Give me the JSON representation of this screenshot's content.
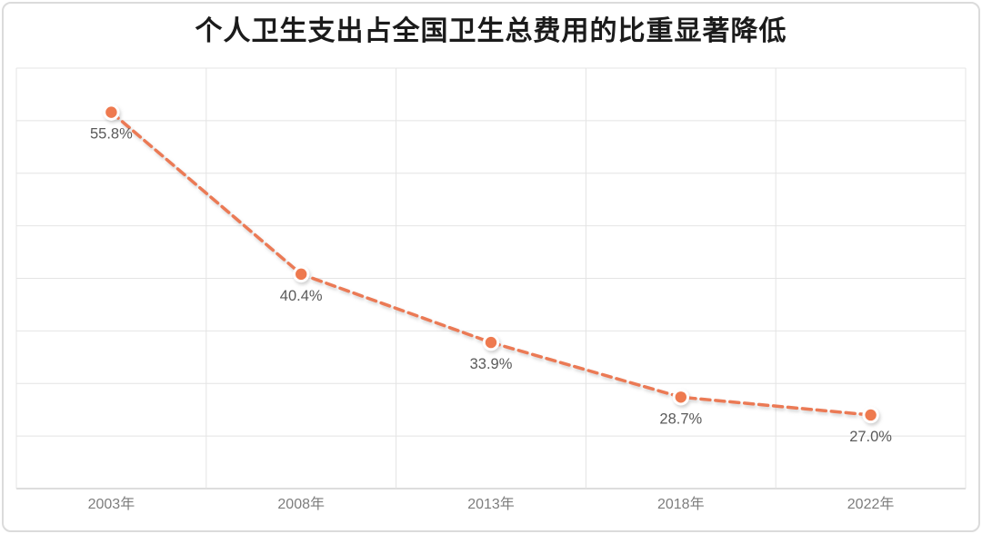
{
  "chart_data": {
    "type": "line",
    "title": "个人卫生支出占全国卫生总费用的比重显著降低",
    "categories": [
      "2003年",
      "2008年",
      "2013年",
      "2018年",
      "2022年"
    ],
    "values": [
      55.8,
      40.4,
      33.9,
      28.7,
      27.0
    ],
    "data_labels": [
      "55.8%",
      "40.4%",
      "33.9%",
      "28.7%",
      "27.0%"
    ],
    "xlabel": "",
    "ylabel": "",
    "ylim": [
      20,
      60
    ],
    "y_gridline_step": 5,
    "y_tick_labels_visible": false,
    "grid": true,
    "legend": "none",
    "line_style": "dashed",
    "marker": "circle-with-white-ring"
  },
  "colors": {
    "background": "#ffffff",
    "card_border": "#dbdbdb",
    "title": "#1b1b1b",
    "line": "#eb7a55",
    "marker_fill": "#ee7a50",
    "marker_ring": "#ffffff",
    "grid": "#e4e4e4",
    "axis_line": "#d2d2d2",
    "data_label": "#5a5a5a",
    "axis_label": "#7d7d7d"
  }
}
